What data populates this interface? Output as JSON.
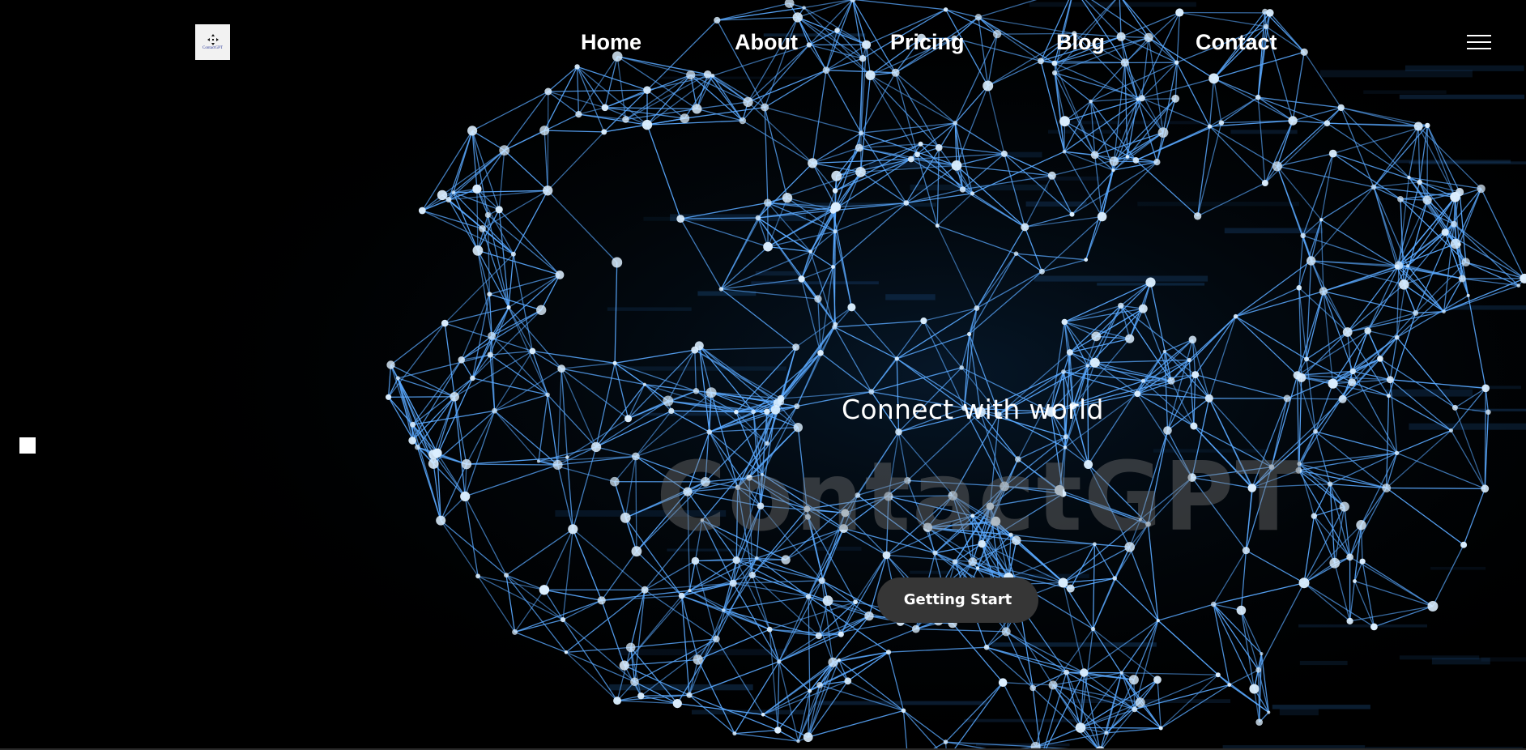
{
  "brand": {
    "logo_text": "ContactGPT",
    "logo_icon": "crosshair-arrows-icon"
  },
  "nav": {
    "items": [
      {
        "label": "Home"
      },
      {
        "label": "About"
      },
      {
        "label": "Pricing"
      },
      {
        "label": "Blog"
      },
      {
        "label": "Contact"
      }
    ],
    "menu_icon": "hamburger-menu-icon"
  },
  "hero": {
    "title": "Connect with world",
    "watermark": "ContactGPT",
    "cta_label": "Getting Start",
    "background": "blue-network-mesh"
  },
  "colors": {
    "background": "#000000",
    "mesh_line": "#5aa9ff",
    "mesh_node": "#dcefff",
    "cta_bg": "#363636",
    "text": "#ffffff"
  }
}
